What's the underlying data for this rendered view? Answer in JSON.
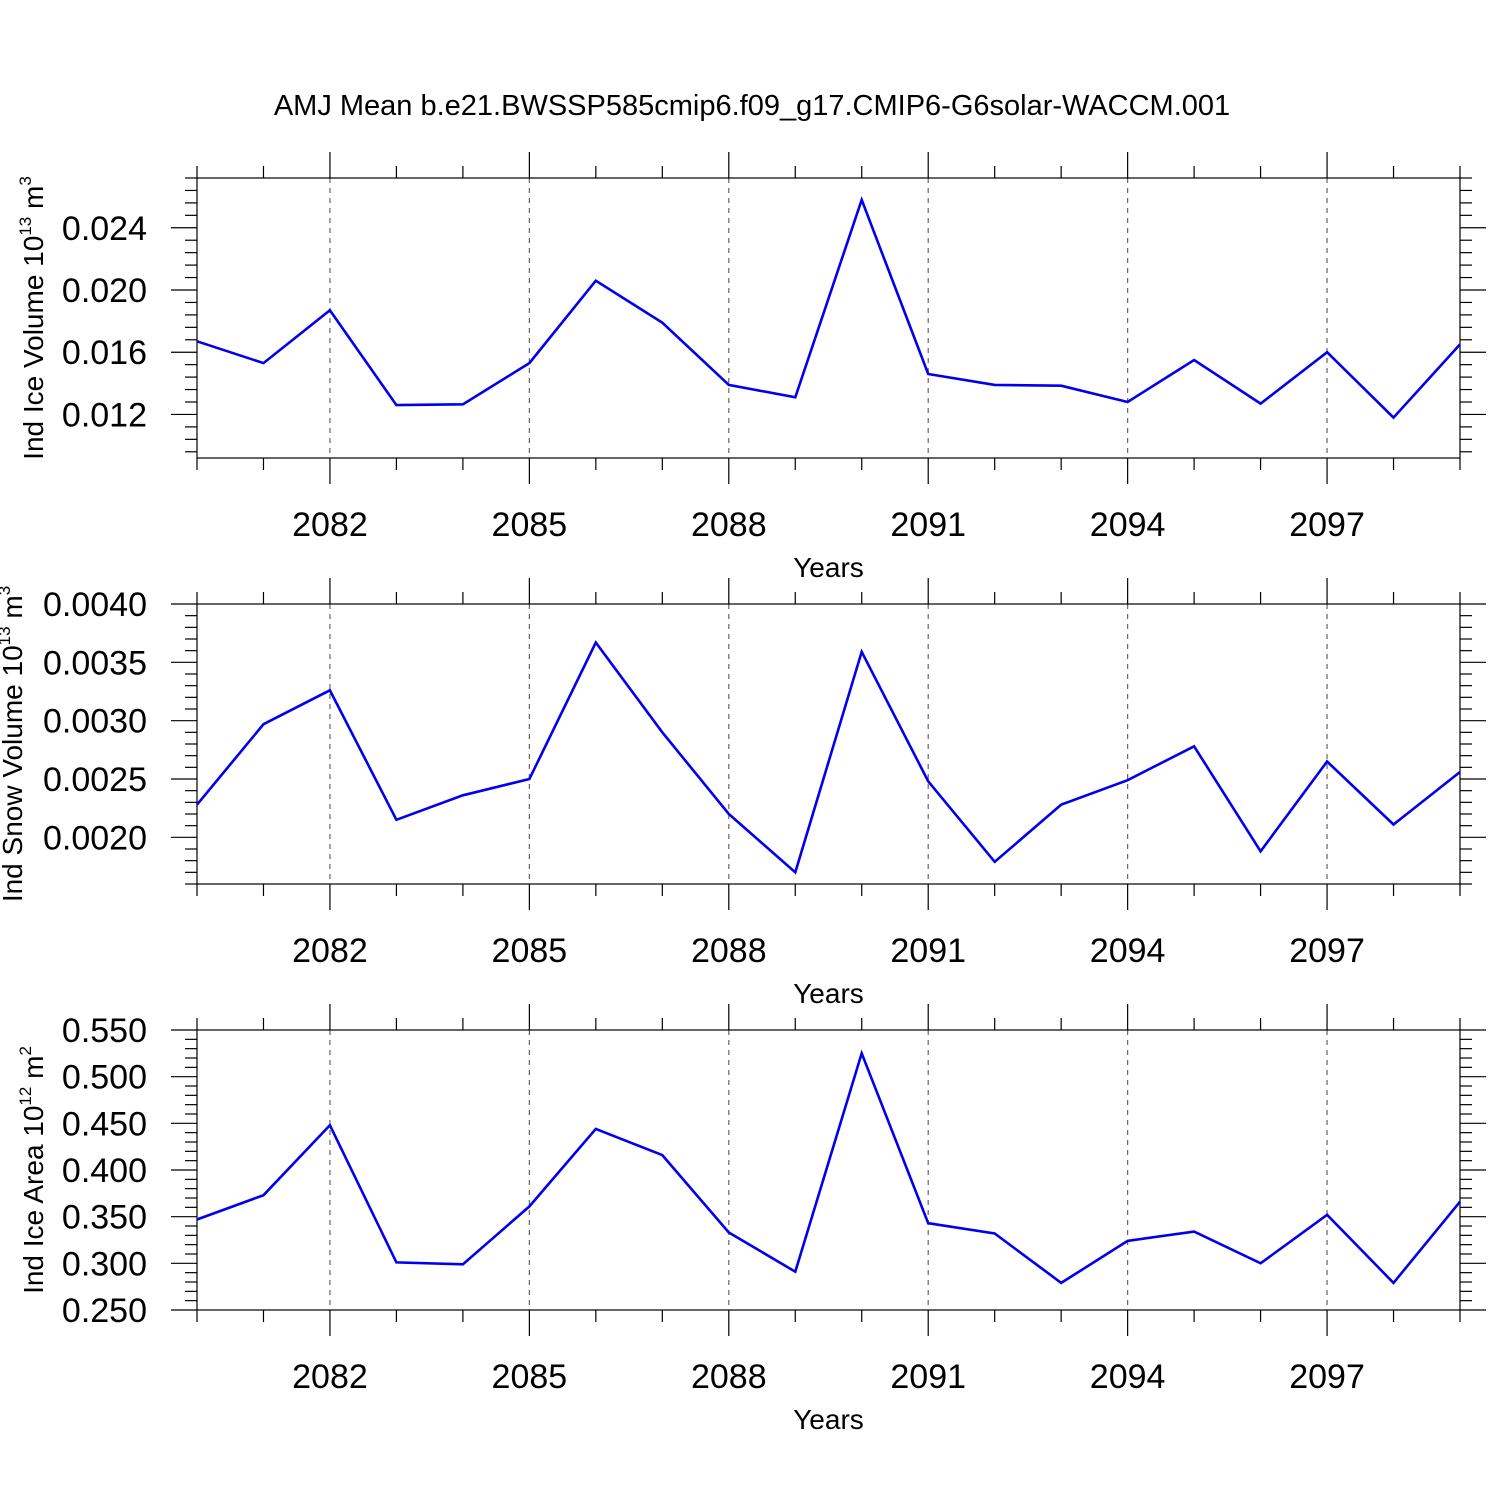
{
  "title": "AMJ Mean b.e21.BWSSP585cmip6.f09_g17.CMIP6-G6solar-WACCM.001",
  "colors": {
    "line": "#0000ee",
    "grid": "#666666",
    "axis": "#000000"
  },
  "chart_data": [
    {
      "type": "line",
      "ylabel": {
        "base": "Ind Ice Volume 10",
        "sup1": "13",
        "unit": " m",
        "sup2": "3"
      },
      "xlabel": "Years",
      "xlim": [
        2080,
        2099
      ],
      "ylim": [
        0.0092,
        0.0272
      ],
      "x_ticks": [
        "2082",
        "2085",
        "2088",
        "2091",
        "2094",
        "2097"
      ],
      "y_ticks": [
        "0.012",
        "0.016",
        "0.020",
        "0.024"
      ],
      "y_tick_values": [
        0.012,
        0.016,
        0.02,
        0.024
      ],
      "x": [
        2080,
        2081,
        2082,
        2083,
        2084,
        2085,
        2086,
        2087,
        2088,
        2089,
        2090,
        2091,
        2092,
        2093,
        2094,
        2095,
        2096,
        2097,
        2098,
        2099
      ],
      "values": [
        0.0167,
        0.0153,
        0.0187,
        0.0126,
        0.01265,
        0.0153,
        0.0206,
        0.0179,
        0.0139,
        0.0131,
        0.0258,
        0.0146,
        0.0139,
        0.01385,
        0.0128,
        0.0155,
        0.0127,
        0.016,
        0.0118,
        0.0165
      ]
    },
    {
      "type": "line",
      "ylabel": {
        "base": "Ind Snow Volume 10",
        "sup1": "13",
        "unit": " m",
        "sup2": "3"
      },
      "xlabel": "Years",
      "xlim": [
        2080,
        2099
      ],
      "ylim": [
        0.0016,
        0.004
      ],
      "x_ticks": [
        "2082",
        "2085",
        "2088",
        "2091",
        "2094",
        "2097"
      ],
      "y_ticks": [
        "0.0020",
        "0.0025",
        "0.0030",
        "0.0035",
        "0.0040"
      ],
      "y_tick_values": [
        0.002,
        0.0025,
        0.003,
        0.0035,
        0.004
      ],
      "x": [
        2080,
        2081,
        2082,
        2083,
        2084,
        2085,
        2086,
        2087,
        2088,
        2089,
        2090,
        2091,
        2092,
        2093,
        2094,
        2095,
        2096,
        2097,
        2098,
        2099
      ],
      "values": [
        0.00228,
        0.00297,
        0.00326,
        0.00215,
        0.00236,
        0.0025,
        0.00367,
        0.0029,
        0.0022,
        0.0017,
        0.00359,
        0.00248,
        0.00179,
        0.00228,
        0.00249,
        0.00278,
        0.00188,
        0.00265,
        0.00211,
        0.00256
      ]
    },
    {
      "type": "line",
      "ylabel": {
        "base": "Ind Ice Area 10",
        "sup1": "12",
        "unit": " m",
        "sup2": "2"
      },
      "xlabel": "Years",
      "xlim": [
        2080,
        2099
      ],
      "ylim": [
        0.25,
        0.55
      ],
      "x_ticks": [
        "2082",
        "2085",
        "2088",
        "2091",
        "2094",
        "2097"
      ],
      "y_ticks": [
        "0.250",
        "0.300",
        "0.350",
        "0.400",
        "0.450",
        "0.500",
        "0.550"
      ],
      "y_tick_values": [
        0.25,
        0.3,
        0.35,
        0.4,
        0.45,
        0.5,
        0.55
      ],
      "x": [
        2080,
        2081,
        2082,
        2083,
        2084,
        2085,
        2086,
        2087,
        2088,
        2089,
        2090,
        2091,
        2092,
        2093,
        2094,
        2095,
        2096,
        2097,
        2098,
        2099
      ],
      "values": [
        0.347,
        0.373,
        0.448,
        0.301,
        0.299,
        0.361,
        0.444,
        0.416,
        0.333,
        0.291,
        0.525,
        0.343,
        0.332,
        0.279,
        0.324,
        0.334,
        0.3,
        0.352,
        0.279,
        0.366
      ]
    }
  ]
}
